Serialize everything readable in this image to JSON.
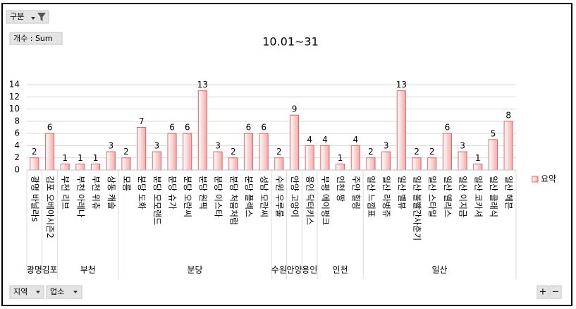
{
  "controls": {
    "filter": "구분",
    "value_field": "개수 : Sum",
    "axis_fields": [
      "지역",
      "업소"
    ],
    "zoom": [
      "+",
      "−"
    ]
  },
  "chart_data": {
    "type": "bar",
    "title": "10.01~31",
    "groups": [
      {
        "label": "광명",
        "categories": [
          "광명 바닐라s"
        ]
      },
      {
        "label": "김포",
        "categories": [
          "김포 오베아시즌2"
        ]
      },
      {
        "label": "부천",
        "categories": [
          "부천 리브",
          "부천 아레나",
          "부천 위츄",
          "상동 캐슬"
        ]
      },
      {
        "label": "분당",
        "categories": [
          "모름",
          "분당 도화",
          "분당 모모랜드",
          "분당 슈가",
          "분당 오란씨",
          "분당 원픽",
          "분당 이스타",
          "분당 처음처럼",
          "분당 플렉스",
          "성남 모란씨"
        ]
      },
      {
        "label": "수원",
        "categories": [
          "수원 우루룰"
        ]
      },
      {
        "label": "안양",
        "categories": [
          "안양 고양이"
        ]
      },
      {
        "label": "용인",
        "categories": [
          "용인 닥터키스"
        ]
      },
      {
        "label": "인천",
        "categories": [
          "부평 에이펑크",
          "인천 짱",
          "주안 힐링"
        ]
      },
      {
        "label": "일산",
        "categories": [
          "일산 느낌표",
          "일산 라벙쥬",
          "일산 벨뷰",
          "일산 볼빨간사춘기",
          "일산 스타일",
          "일산 엘리스",
          "일산 이지금",
          "일산 코카셔",
          "일산 클래식",
          "일산 헤븐"
        ]
      }
    ],
    "series": [
      {
        "name": "요약",
        "color": "#f4a9a9",
        "values": [
          2,
          6,
          1,
          1,
          1,
          3,
          2,
          7,
          3,
          6,
          6,
          13,
          3,
          2,
          6,
          6,
          2,
          9,
          4,
          4,
          1,
          4,
          2,
          3,
          13,
          2,
          2,
          6,
          3,
          1,
          5,
          8
        ]
      }
    ],
    "ylim": [
      0,
      14
    ],
    "yticks": [
      0,
      2,
      4,
      6,
      8,
      10,
      12,
      14
    ],
    "grid": true,
    "legend": "right"
  }
}
